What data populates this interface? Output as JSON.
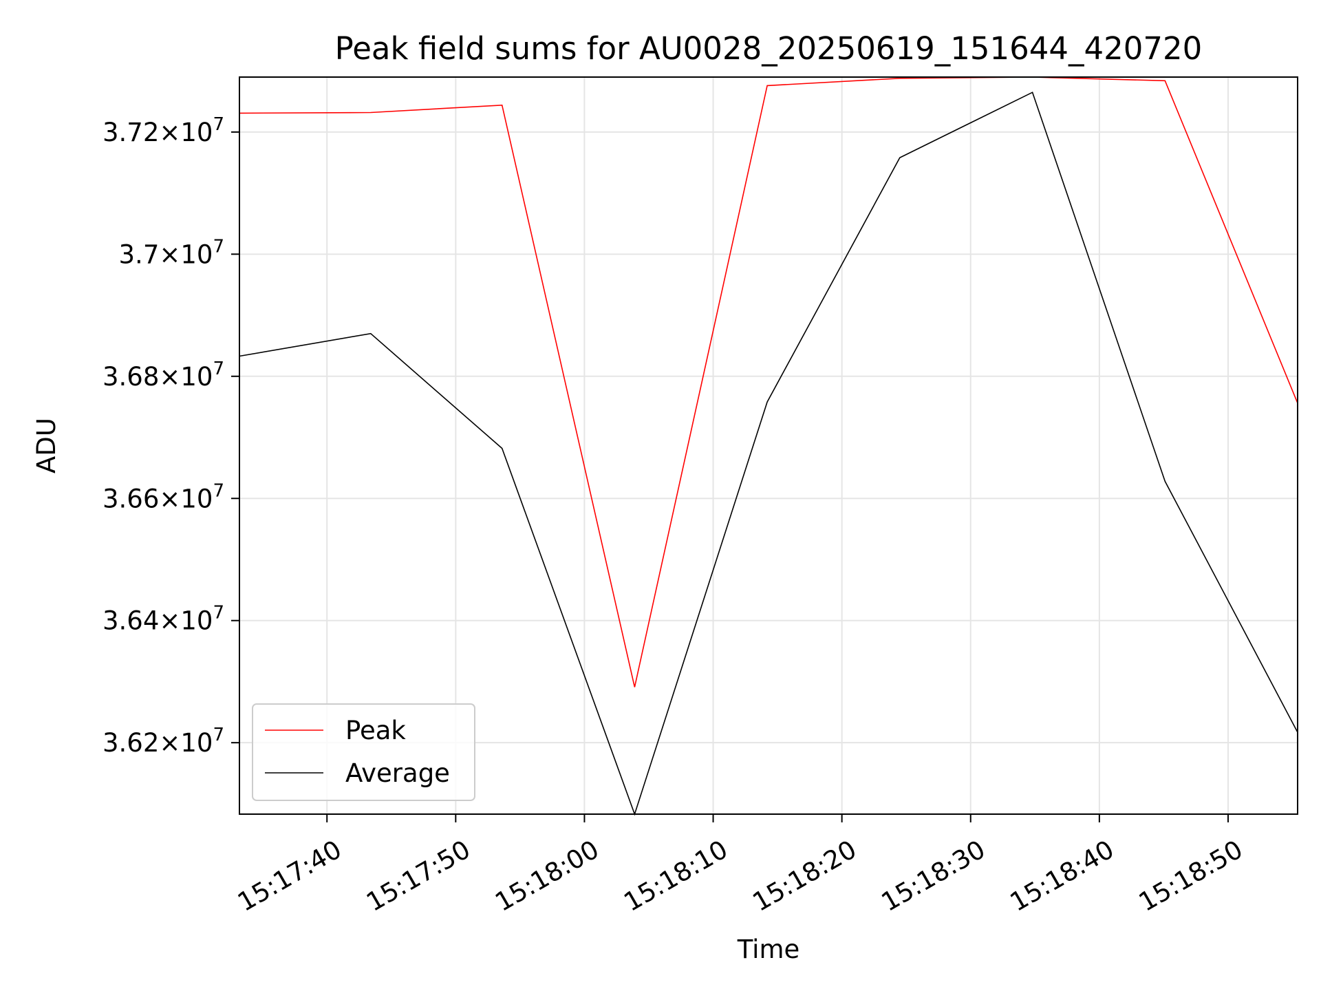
{
  "chart_data": {
    "type": "line",
    "title": "Peak field sums for AU0028_20250619_151644_420720",
    "xlabel": "Time",
    "ylabel": "ADU",
    "x": [
      "15:17:33",
      "15:17:43",
      "15:17:54",
      "15:18:04",
      "15:18:14",
      "15:18:24",
      "15:18:35",
      "15:18:45",
      "15:18:55"
    ],
    "x_seconds_of_day": [
      55053.2,
      55063.4,
      55073.6,
      55083.9,
      55094.2,
      55104.5,
      55114.8,
      55125.1,
      55135.4
    ],
    "series": [
      {
        "name": "Peak",
        "color": "#ff0000",
        "values": [
          37231000,
          37232000,
          37244000,
          36291000,
          37276000,
          37288000,
          37290000,
          37284000,
          36756000
        ]
      },
      {
        "name": "Average",
        "color": "#000000",
        "values": [
          36833000,
          36870000,
          36682000,
          36083000,
          36758000,
          37158000,
          37265000,
          36628000,
          36217000
        ]
      }
    ],
    "xlim_seconds_of_day": [
      55053.2,
      55135.4
    ],
    "ylim": [
      36083000,
      37290000
    ],
    "x_ticks": [
      "15:17:40",
      "15:17:50",
      "15:18:00",
      "15:18:10",
      "15:18:20",
      "15:18:30",
      "15:18:40",
      "15:18:50"
    ],
    "x_ticks_seconds_of_day": [
      55060,
      55070,
      55080,
      55090,
      55100,
      55110,
      55120,
      55130
    ],
    "y_ticks": [
      36200000,
      36400000,
      36600000,
      36800000,
      37000000,
      37200000
    ],
    "y_tick_labels": [
      {
        "mantissa": "3.62",
        "exponent": "7"
      },
      {
        "mantissa": "3.64",
        "exponent": "7"
      },
      {
        "mantissa": "3.66",
        "exponent": "7"
      },
      {
        "mantissa": "3.68",
        "exponent": "7"
      },
      {
        "mantissa": "3.7",
        "exponent": "7"
      },
      {
        "mantissa": "3.72",
        "exponent": "7"
      }
    ],
    "grid": true,
    "legend": "lower-left"
  }
}
